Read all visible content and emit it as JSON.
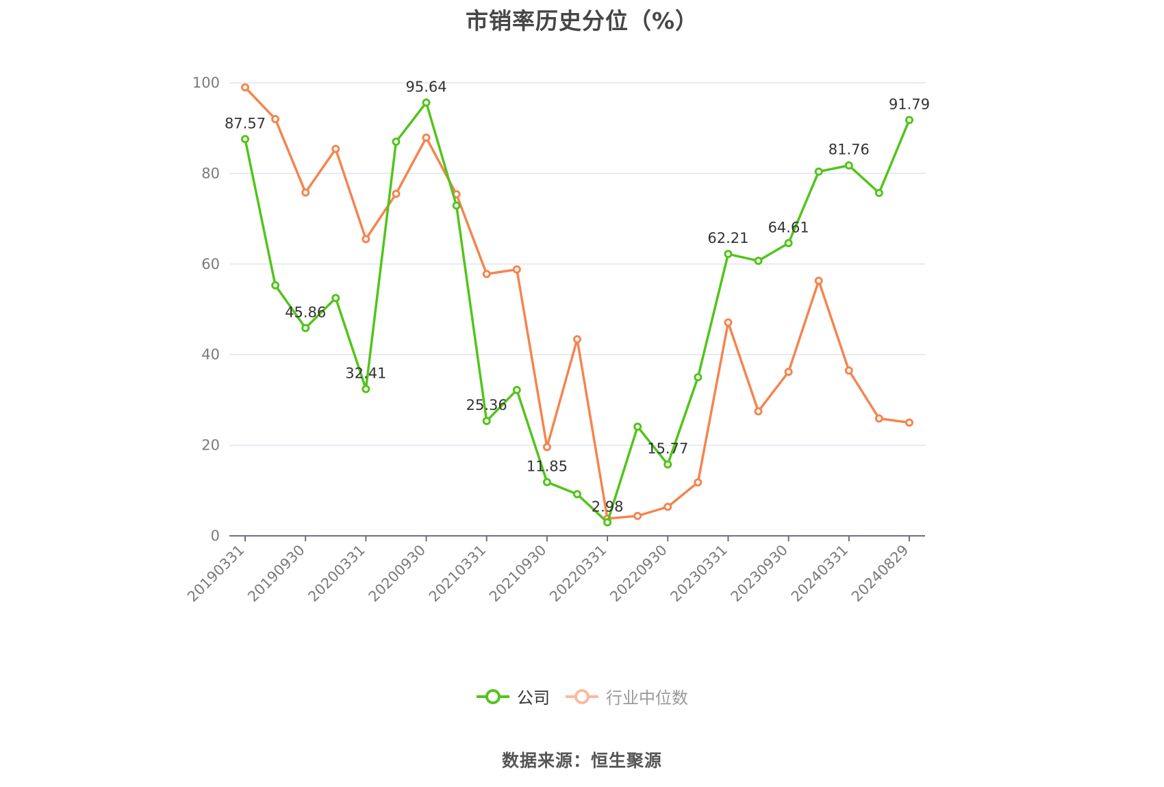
{
  "title": "市销率历史分位（%）",
  "source": "数据来源：恒生聚源",
  "legend": [
    {
      "label": "公司",
      "color": "#52c41a",
      "active": true
    },
    {
      "label": "行业中位数",
      "color": "#fa8c54",
      "active": false
    }
  ],
  "colors": {
    "company": "#52c41a",
    "industry": "#f5844f",
    "grid": "#e0e4ef",
    "axis": "#6e7079"
  },
  "chart_data": {
    "type": "line",
    "title": "市销率历史分位（%）",
    "xlabel": "",
    "ylabel": "",
    "ylim": [
      0,
      100
    ],
    "yticks": [
      0,
      20,
      40,
      60,
      80,
      100
    ],
    "grid": true,
    "legend_position": "bottom",
    "x": [
      "20190331",
      "20190630",
      "20190930",
      "20191231",
      "20200331",
      "20200630",
      "20200930",
      "20201231",
      "20210331",
      "20210630",
      "20210930",
      "20211231",
      "20220331",
      "20220630",
      "20220930",
      "20221231",
      "20230331",
      "20230630",
      "20230930",
      "20231231",
      "20240331",
      "20240630",
      "20240829"
    ],
    "xtick_labels_shown": [
      "20190331",
      "20190930",
      "20200331",
      "20200930",
      "20210331",
      "20210930",
      "20220331",
      "20220930",
      "20230331",
      "20230930",
      "20240331",
      "20240829"
    ],
    "series": [
      {
        "name": "公司",
        "values": [
          87.57,
          55.3,
          45.86,
          52.5,
          32.41,
          87.0,
          95.64,
          72.9,
          25.36,
          32.2,
          11.85,
          9.2,
          2.98,
          24.1,
          15.77,
          35.0,
          62.21,
          60.7,
          64.61,
          80.4,
          81.76,
          75.7,
          91.79
        ],
        "labeled_points": {
          "0": "87.57",
          "2": "45.86",
          "4": "32.41",
          "6": "95.64",
          "8": "25.36",
          "10": "11.85",
          "12": "2.98",
          "14": "15.77",
          "16": "62.21",
          "18": "64.61",
          "20": "81.76",
          "22": "91.79"
        }
      },
      {
        "name": "行业中位数",
        "values": [
          99.0,
          92.0,
          75.8,
          85.4,
          65.5,
          75.5,
          87.9,
          75.4,
          57.8,
          58.8,
          19.6,
          43.4,
          3.8,
          4.4,
          6.4,
          11.8,
          47.1,
          27.5,
          36.2,
          56.3,
          36.5,
          25.9,
          25.0
        ]
      }
    ]
  }
}
